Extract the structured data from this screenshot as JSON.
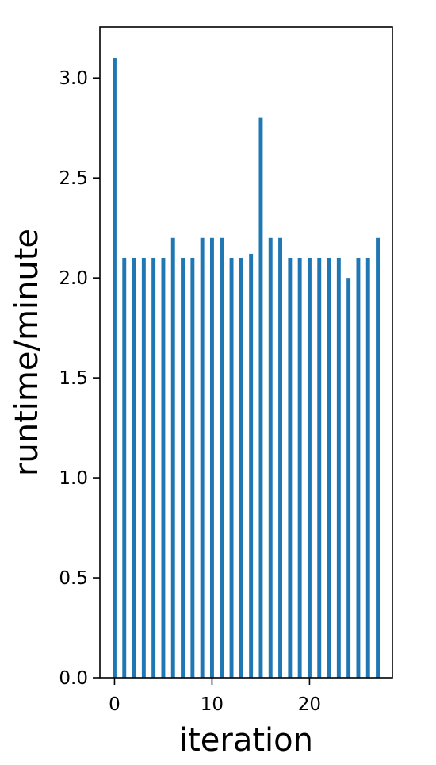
{
  "chart_data": {
    "type": "bar",
    "x": [
      0,
      1,
      2,
      3,
      4,
      5,
      6,
      7,
      8,
      9,
      10,
      11,
      12,
      13,
      14,
      15,
      16,
      17,
      18,
      19,
      20,
      21,
      22,
      23,
      24,
      25,
      26,
      27
    ],
    "values": [
      3.1,
      2.1,
      2.1,
      2.1,
      2.1,
      2.1,
      2.2,
      2.1,
      2.1,
      2.2,
      2.2,
      2.2,
      2.1,
      2.1,
      2.12,
      2.8,
      2.2,
      2.2,
      2.1,
      2.1,
      2.1,
      2.1,
      2.1,
      2.1,
      2.0,
      2.1,
      2.1,
      2.2
    ],
    "title": "",
    "xlabel": "iteration",
    "ylabel": "runtime/minute",
    "xlim": [
      -1.5,
      28.5
    ],
    "ylim": [
      0,
      3.255
    ],
    "xticks": [
      0,
      10,
      20
    ],
    "xtick_labels": [
      "0",
      "10",
      "20"
    ],
    "yticks": [
      0.0,
      0.5,
      1.0,
      1.5,
      2.0,
      2.5,
      3.0
    ],
    "ytick_labels": [
      "0.0",
      "0.5",
      "1.0",
      "1.5",
      "2.0",
      "2.5",
      "3.0"
    ],
    "bar_color": "#1f77b4",
    "grid": false,
    "legend": "none"
  }
}
